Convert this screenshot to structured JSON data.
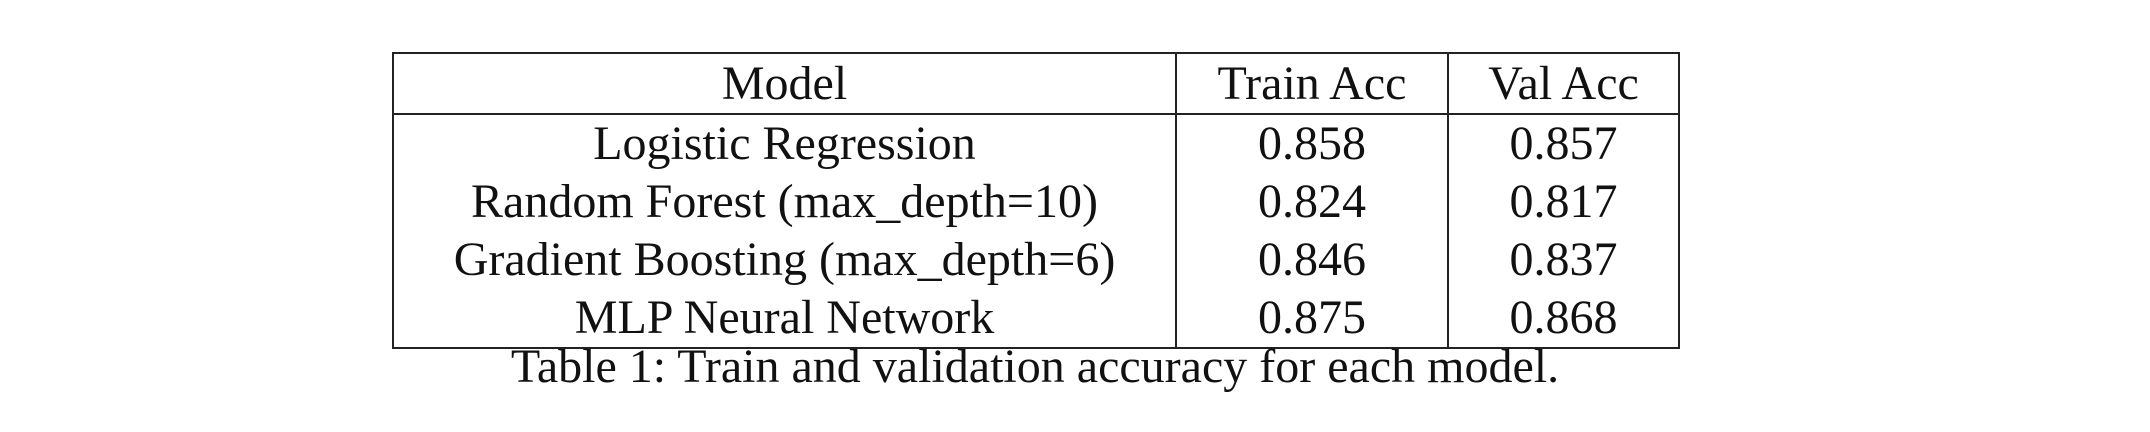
{
  "table": {
    "headers": [
      "Model",
      "Train Acc",
      "Val Acc"
    ],
    "rows": [
      {
        "model": "Logistic Regression",
        "train_acc": "0.858",
        "val_acc": "0.857"
      },
      {
        "model": "Random Forest (max_depth=10)",
        "train_acc": "0.824",
        "val_acc": "0.817"
      },
      {
        "model": "Gradient Boosting (max_depth=6)",
        "train_acc": "0.846",
        "val_acc": "0.837"
      },
      {
        "model": "MLP Neural Network",
        "train_acc": "0.875",
        "val_acc": "0.868"
      }
    ],
    "caption": "Table 1: Train and validation accuracy for each model."
  }
}
